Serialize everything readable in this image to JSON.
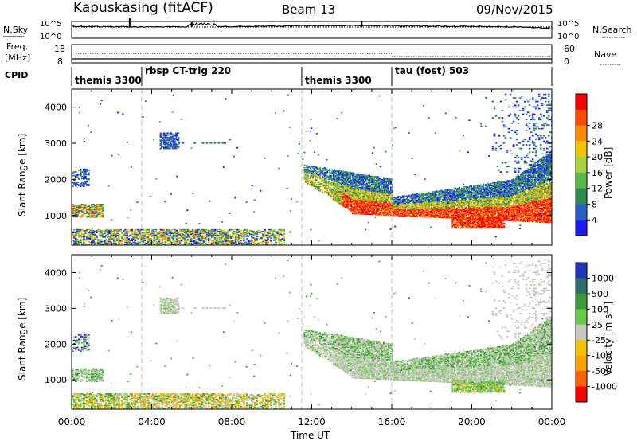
{
  "header": {
    "title": "Kapuskasing (fitACF)",
    "beam": "Beam 13",
    "date": "09/Nov/2015"
  },
  "noise_panel": {
    "left_label": "N.Sky",
    "left_ticks": [
      "10^5",
      "10^0"
    ],
    "right_label": "N.Search",
    "right_ticks": [
      "10^5",
      "10^0"
    ]
  },
  "freq_panel": {
    "left_label_line1": "Freq.",
    "left_label_line2": "[MHz]",
    "left_ticks": [
      "18",
      "8"
    ],
    "right_label": "Nave",
    "right_ticks": [
      "60",
      "0"
    ]
  },
  "cpid": {
    "label": "CPID",
    "segments": [
      {
        "start_h": 0,
        "end_h": 3.5,
        "text": "themis 3300"
      },
      {
        "start_h": 3.5,
        "end_h": 11.5,
        "text": "rbsp CT-trig 220"
      },
      {
        "start_h": 11.5,
        "end_h": 16,
        "text": "themis 3300"
      },
      {
        "start_h": 16,
        "end_h": 24,
        "text": "tau (fost) 503"
      }
    ]
  },
  "x_axis": {
    "label": "Time UT",
    "ticks": [
      "00:00",
      "04:00",
      "08:00",
      "12:00",
      "16:00",
      "20:00",
      "00:00"
    ],
    "range_h": [
      0,
      24
    ],
    "dashed_lines_h": [
      3.5,
      11.5,
      16
    ]
  },
  "chart_data": [
    {
      "type": "heatmap",
      "panel": "power",
      "ylabel": "Slant Range [km]",
      "ylim": [
        180,
        4500
      ],
      "yticks": [
        "1000",
        "2000",
        "3000",
        "4000"
      ],
      "colorbar": {
        "label": "Power [dB]",
        "tick_labels": [
          "4",
          "8",
          "12",
          "16",
          "20",
          "24",
          "28"
        ],
        "colors": [
          "#1a1aff",
          "#2b5fc8",
          "#2e8a4e",
          "#58b84a",
          "#a9d23c",
          "#f2c500",
          "#ff8a00",
          "#ff4a00",
          "#ff0000"
        ]
      },
      "regions": [
        {
          "t0": 0,
          "t1": 10.5,
          "r0": 200,
          "r1": 600,
          "value": "mixed"
        },
        {
          "t0": 0,
          "t1": 1.5,
          "r0": 950,
          "r1": 1300,
          "value": "low"
        },
        {
          "t0": 4.5,
          "t1": 5.2,
          "r0": 2850,
          "r1": 3250,
          "value": "low"
        },
        {
          "t0": 11.8,
          "t1": 24,
          "r0": 800,
          "r1": 2000,
          "value": "high"
        },
        {
          "t0": 19,
          "t1": 21.5,
          "r0": 650,
          "r1": 950,
          "value": "high"
        }
      ]
    },
    {
      "type": "heatmap",
      "panel": "velocity",
      "ylabel": "Slant Range [km]",
      "ylim": [
        180,
        4500
      ],
      "yticks": [
        "1000",
        "2000",
        "3000",
        "4000"
      ],
      "colorbar": {
        "label": "Velocity [m s⁻¹]",
        "tick_labels": [
          "1000",
          "500",
          "100",
          "25",
          "-25",
          "-100",
          "-500",
          "-1000"
        ],
        "colors": [
          "#2233bb",
          "#2e6e6e",
          "#3a9a3a",
          "#66cc44",
          "#c8c8c0",
          "#f5c000",
          "#ffa000",
          "#ff6000",
          "#ff0000"
        ]
      }
    }
  ]
}
